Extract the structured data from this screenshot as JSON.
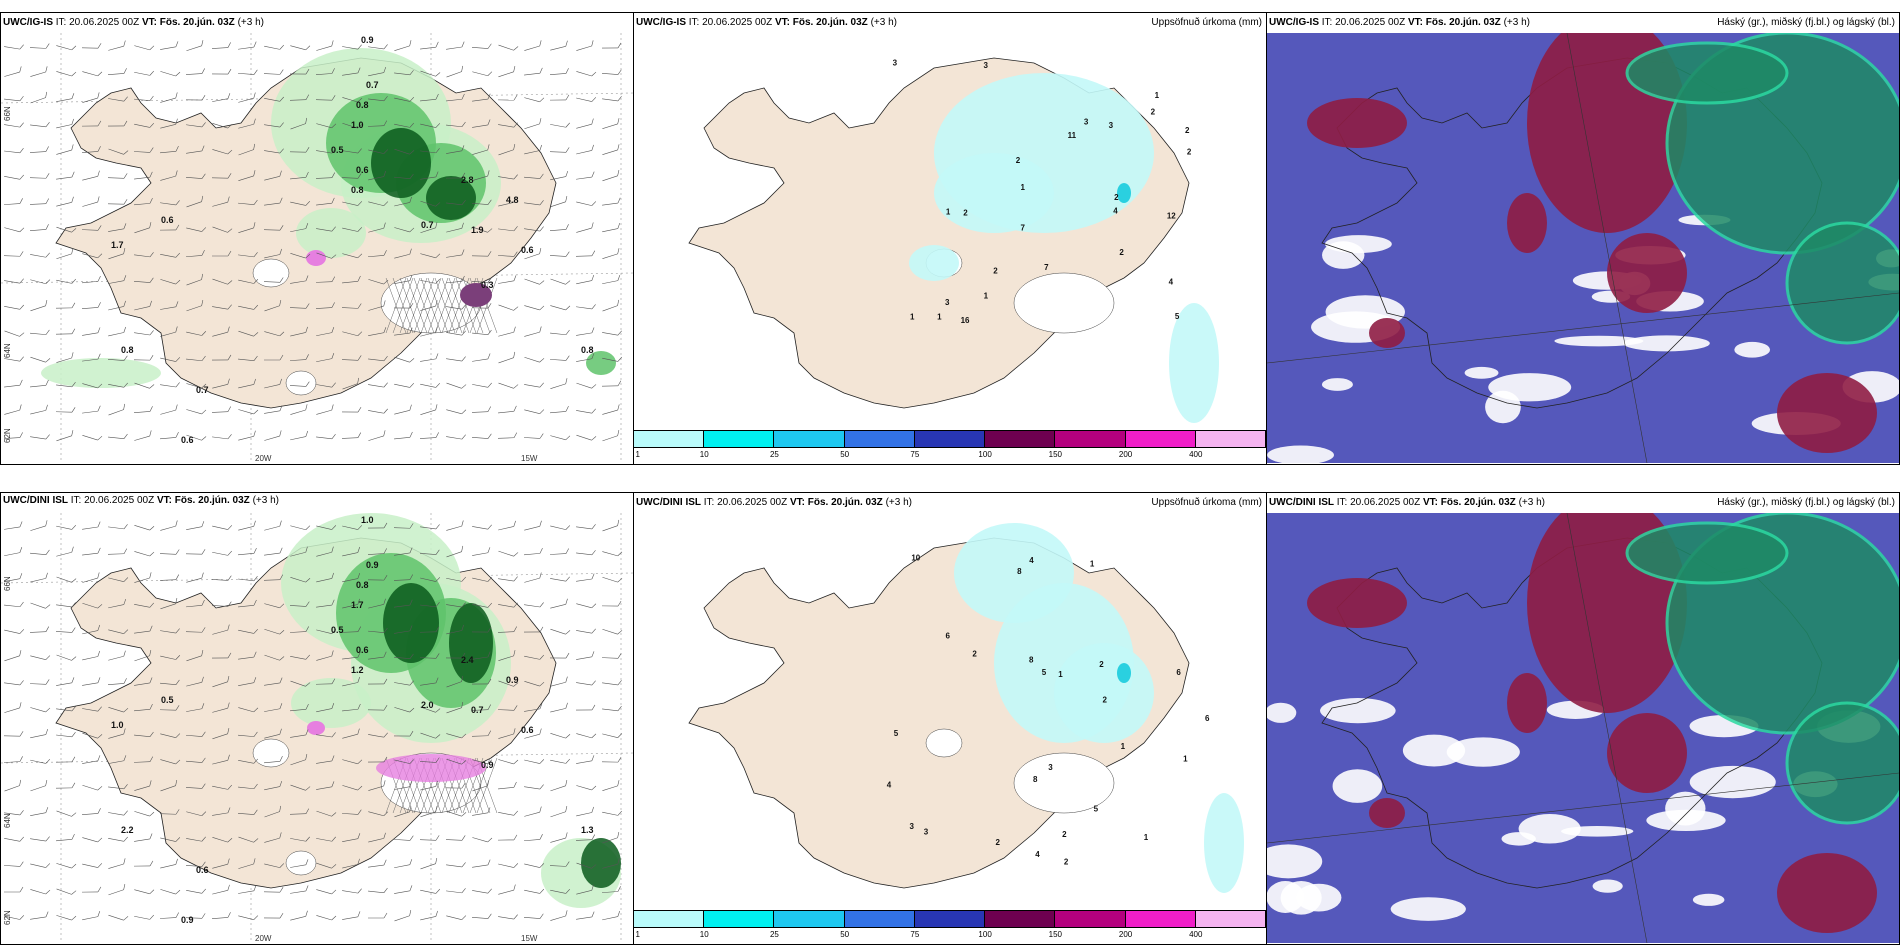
{
  "colors": {
    "land": "#f3e5d6",
    "precip_light": "#c8f0c8",
    "precip_mid": "#5fc36b",
    "precip_dark": "#0b5b1c",
    "snow_pink": "#e67fe0",
    "lowcloud": "#5558bb",
    "midcloud": "#8f1d44",
    "highcloud": "#1e8a66"
  },
  "panels": [
    {
      "model": "UWC/IG-IS",
      "it": "IT: 20.06.2025 00Z",
      "vt_label": "VT:",
      "vt": "Fös. 20.jún. 03Z",
      "lead": "(+3 h)",
      "right": ""
    },
    {
      "model": "UWC/IG-IS",
      "it": "IT: 20.06.2025 00Z",
      "vt_label": "VT:",
      "vt": "Fös. 20.jún. 03Z",
      "lead": "(+3 h)",
      "right": "Uppsöfnuð úrkoma (mm)"
    },
    {
      "model": "UWC/IG-IS",
      "it": "IT: 20.06.2025 00Z",
      "vt_label": "VT:",
      "vt": "Fös. 20.jún. 03Z",
      "lead": "(+3 h)",
      "right": "Háský (gr.), miðský (fj.bl.) og lágský (bl.)"
    },
    {
      "model": "UWC/DINI ISL",
      "it": "IT: 20.06.2025 00Z",
      "vt_label": "VT:",
      "vt": "Fös. 20.jún. 03Z",
      "lead": "(+3 h)",
      "right": ""
    },
    {
      "model": "UWC/DINI ISL",
      "it": "IT: 20.06.2025 00Z",
      "vt_label": "VT:",
      "vt": "Fös. 20.jún. 03Z",
      "lead": "(+3 h)",
      "right": "Uppsöfnuð úrkoma (mm)"
    },
    {
      "model": "UWC/DINI ISL",
      "it": "IT: 20.06.2025 00Z",
      "vt_label": "VT:",
      "vt": "Fös. 20.jún. 03Z",
      "lead": "(+3 h)",
      "right": "Háský (gr.), miðský (fj.bl.) og lágský (bl.)"
    }
  ],
  "axes": {
    "lon_20": "20W",
    "lon_15": "15W",
    "lat_66": "66N",
    "lat_64": "64N",
    "lat_62": "62N"
  },
  "colorbar": {
    "labels": [
      "1",
      "10",
      "25",
      "50",
      "75",
      "100",
      "150",
      "200",
      "400"
    ],
    "colors": [
      "#b9fbfb",
      "#00f0f0",
      "#1ec8f0",
      "#3272e6",
      "#2836b4",
      "#6e0050",
      "#b4007e",
      "#f01ec8",
      "#f5b4f0"
    ]
  },
  "precip_labels_top": [
    "0.9",
    "0.7",
    "0.8",
    "1.0",
    "0.5",
    "0.6",
    "0.8",
    "2.8",
    "4.8",
    "1.9",
    "0.7",
    "0.6",
    "0.3",
    "1.7",
    "0.6",
    "0.8",
    "0.7",
    "0.6",
    "0.8"
  ],
  "precip_labels_bottom": [
    "1.0",
    "0.9",
    "0.8",
    "1.7",
    "0.5",
    "0.6",
    "1.2",
    "2.4",
    "0.9",
    "0.7",
    "2.0",
    "0.6",
    "0.9",
    "1.0",
    "0.5",
    "2.2",
    "0.6",
    "0.9",
    "1.3"
  ],
  "accum_labels_top": [
    "1",
    "2",
    "3",
    "4",
    "5",
    "2",
    "3",
    "7",
    "11",
    "16",
    "12",
    "3",
    "1",
    "2",
    "3",
    "2",
    "2",
    "1",
    "1",
    "2",
    "3",
    "4",
    "2",
    "1",
    "7",
    "2",
    "1"
  ],
  "accum_labels_bottom": [
    "1",
    "8",
    "5",
    "4",
    "8",
    "2",
    "1",
    "2",
    "3",
    "10",
    "6",
    "5",
    "8",
    "2",
    "1",
    "3",
    "2",
    "1",
    "4",
    "6",
    "3",
    "1",
    "2",
    "5",
    "4",
    "6",
    "2"
  ]
}
